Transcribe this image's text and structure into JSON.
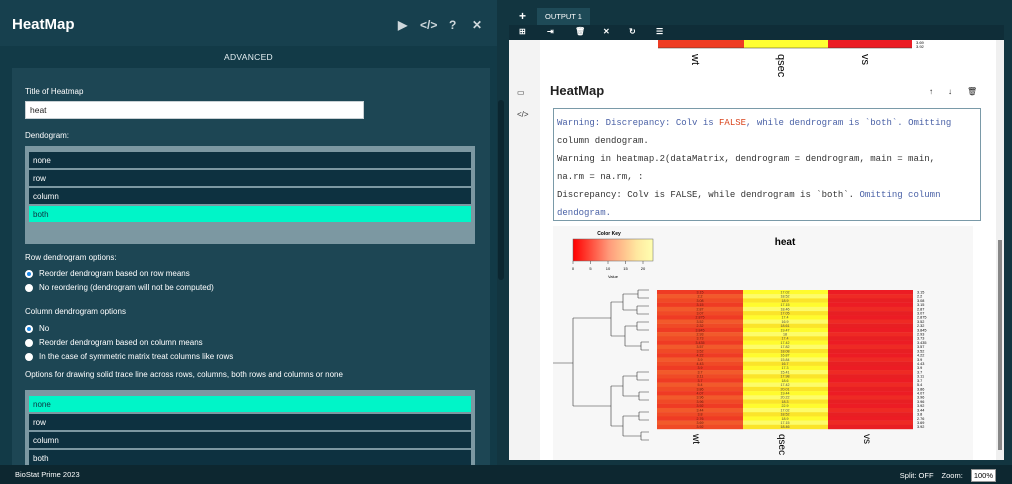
{
  "header": {
    "app_title": "HeatMap",
    "advanced_label": "ADVANCED"
  },
  "form": {
    "title_label": "Title of Heatmap",
    "title_value": "heat",
    "dendrogram_label": "Dendogram:",
    "dendrogram_options": [
      "none",
      "row",
      "column",
      "both"
    ],
    "dendrogram_selected": "both",
    "row_dendro_label": "Row dendrogram options:",
    "row_dendro_opt1": "Reorder dendrogram based on row means",
    "row_dendro_opt2": "No reordering (dendrogram will not be computed)",
    "col_dendro_label": "Column dendrogram options",
    "col_dendro_opt1": "No",
    "col_dendro_opt2": "Reorder dendrogram based on column means",
    "col_dendro_opt3": "In the case of symmetric matrix treat columns like rows",
    "trace_label": "Options for drawing solid trace line across rows, columns, both rows and columns or none",
    "trace_options": [
      "none",
      "row",
      "column",
      "both"
    ],
    "trace_selected": "none"
  },
  "output": {
    "tab_label": "OUTPUT 1",
    "title": "HeatMap",
    "warn_line1_a": "Warning: Discrepancy: Colv is ",
    "warn_line1_false": "FALSE",
    "warn_line1_b": ", while dendrogram is `both`. Omitting",
    "warn_line2": "column dendogram.",
    "warn_line3": "Warning in heatmap.2(dataMatrix, dendrogram = dendrogram, main = main,",
    "warn_line4": "na.rm = na.rm,  :",
    "warn_line5_a": "  Discrepancy: Colv is FALSE, while dendrogram is `both`. ",
    "warn_line5_b": "Omitting column",
    "warn_line6": "dendogram."
  },
  "heatmap": {
    "title": "heat",
    "color_key_title": "Color Key",
    "color_key_xlabel": "Value",
    "color_key_ticks": [
      "0",
      "5",
      "10",
      "15",
      "20"
    ],
    "columns": [
      "wt",
      "qsec",
      "vs"
    ],
    "top_partial_values": [
      "3.15",
      "3.69",
      "3.92"
    ],
    "row_values": [
      "3.15",
      "2.2",
      "3.08",
      "3.15",
      "2.87",
      "3.07",
      "2.875",
      "3.52",
      "2.32",
      "3.845",
      "2.93",
      "3.73",
      "3.435",
      "3.57",
      "3.52",
      "4.22",
      "3.9",
      "4.43",
      "3.9",
      "3.7",
      "3.11",
      "3.7",
      "5.4",
      "3.86",
      "4.07",
      "3.96",
      "3.96",
      "3.92",
      "3.44",
      "3.8",
      "2.76",
      "3.69",
      "3.92"
    ],
    "center_values": [
      "17.02",
      "18.52",
      "18.9",
      "17.15",
      "18.46",
      "17.05",
      "17.4",
      "16.9",
      "18.61",
      "19.47",
      "18",
      "17.4",
      "17.42",
      "17.82",
      "18.08",
      "16.87",
      "15.84",
      "16.7",
      "17.3",
      "15.41",
      "17.98",
      "18.6",
      "17.42",
      "20.01",
      "19.44",
      "20.22",
      "18.3",
      "22.9"
    ]
  },
  "status": {
    "left": "BioStat Prime 2023",
    "split": "Split: OFF",
    "zoom_label": "Zoom:",
    "zoom_value": "100%"
  },
  "colors": {
    "accent": "#00f5c8",
    "panel": "#123a47"
  }
}
